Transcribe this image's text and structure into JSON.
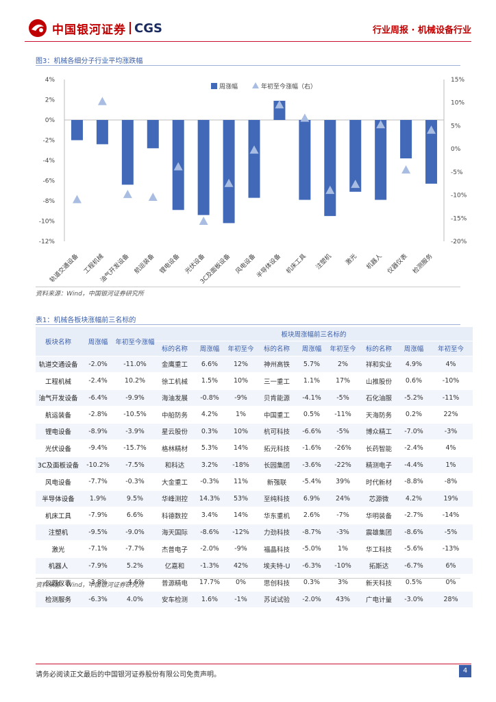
{
  "header": {
    "brand_cn": "中国银河证券",
    "brand_en": "CGS",
    "report_type": "行业周报 · 机械设备行业"
  },
  "figure": {
    "title": "图3：机械各细分子行业平均涨跌幅",
    "source": "资料来源：Wind，中国银河证券研究所"
  },
  "chart_data": {
    "type": "bar",
    "categories": [
      "轨道交通设备",
      "工程机械",
      "油气开发设备",
      "航运装备",
      "锂电设备",
      "光伏设备",
      "3C及面板设备",
      "风电设备",
      "半导体设备",
      "机床工具",
      "注塑机",
      "激光",
      "机器人",
      "仪器仪表",
      "检测服务"
    ],
    "series": [
      {
        "name": "周涨幅",
        "axis": "left",
        "kind": "bar",
        "values": [
          -2.0,
          -2.4,
          -6.4,
          -2.8,
          -8.9,
          -9.4,
          -10.2,
          -7.7,
          1.9,
          -7.9,
          -9.5,
          -7.1,
          -7.9,
          -3.8,
          -6.3
        ]
      },
      {
        "name": "年初至今涨幅（右）",
        "axis": "right",
        "kind": "marker",
        "values": [
          -11.0,
          10.2,
          -9.9,
          -10.5,
          -3.9,
          -15.7,
          -7.5,
          -0.3,
          9.5,
          6.6,
          -9.0,
          -7.7,
          5.2,
          -4.6,
          4.0
        ]
      }
    ],
    "y_left": {
      "min": -12,
      "max": 4,
      "ticks": [
        "4%",
        "2%",
        "0%",
        "-2%",
        "-4%",
        "-6%",
        "-8%",
        "-10%",
        "-12%"
      ]
    },
    "y_right": {
      "min": -20,
      "max": 15,
      "ticks": [
        "15%",
        "10%",
        "5%",
        "0%",
        "-5%",
        "-10%",
        "-15%",
        "-20%"
      ]
    },
    "legend_position": "top-right",
    "colors": {
      "bar": "#4169b8",
      "marker": "#a9bde3"
    }
  },
  "table": {
    "title": "表1：机械各板块涨幅前三名标的",
    "source": "资料来源：Wind，中国银河证券研究所",
    "group_header": "板块周涨幅前三名标的",
    "col_headers": [
      "板块名称",
      "周涨幅",
      "年初至今涨幅",
      "标的名称",
      "周涨幅",
      "年初至今",
      "标的名称",
      "周涨幅",
      "年初至今",
      "标的名称",
      "周涨幅",
      "年初至今"
    ],
    "rows": [
      [
        "轨道交通设备",
        "-2.0%",
        "-11.0%",
        "金鹰重工",
        "6.6%",
        "12%",
        "神州高铁",
        "5.7%",
        "2%",
        "祥和实业",
        "4.9%",
        "4%"
      ],
      [
        "工程机械",
        "-2.4%",
        "10.2%",
        "徐工机械",
        "1.5%",
        "10%",
        "三一重工",
        "1.1%",
        "17%",
        "山推股份",
        "0.6%",
        "-10%"
      ],
      [
        "油气开发设备",
        "-6.4%",
        "-9.9%",
        "海油发展",
        "-0.8%",
        "-9%",
        "贝肯能源",
        "-4.1%",
        "-5%",
        "石化油服",
        "-5.2%",
        "-11%"
      ],
      [
        "航运装备",
        "-2.8%",
        "-10.5%",
        "中船防务",
        "4.2%",
        "1%",
        "中国重工",
        "0.5%",
        "-11%",
        "天海防务",
        "0.2%",
        "22%"
      ],
      [
        "锂电设备",
        "-8.9%",
        "-3.9%",
        "星云股份",
        "0.3%",
        "10%",
        "杭可科技",
        "-6.6%",
        "-5%",
        "博众精工",
        "-7.0%",
        "-3%"
      ],
      [
        "光伏设备",
        "-9.4%",
        "-15.7%",
        "格林精材",
        "5.3%",
        "14%",
        "拓元科技",
        "-1.6%",
        "-26%",
        "长药智能",
        "-2.4%",
        "4%"
      ],
      [
        "3C及面板设备",
        "-10.2%",
        "-7.5%",
        "和科达",
        "3.2%",
        "-18%",
        "长园集团",
        "-3.6%",
        "-22%",
        "精测电子",
        "-4.4%",
        "1%"
      ],
      [
        "风电设备",
        "-7.7%",
        "-0.3%",
        "大金重工",
        "-0.3%",
        "11%",
        "新强联",
        "-5.4%",
        "39%",
        "时代新材",
        "-8.8%",
        "-8%"
      ],
      [
        "半导体设备",
        "1.9%",
        "9.5%",
        "华峰测控",
        "14.3%",
        "53%",
        "至纯科技",
        "6.9%",
        "24%",
        "芯源微",
        "4.2%",
        "19%"
      ],
      [
        "机床工具",
        "-7.9%",
        "6.6%",
        "科德数控",
        "3.4%",
        "14%",
        "华东重机",
        "2.6%",
        "-7%",
        "华明装备",
        "-2.7%",
        "-14%"
      ],
      [
        "注塑机",
        "-9.5%",
        "-9.0%",
        "海天国际",
        "-8.6%",
        "-12%",
        "力劲科技",
        "-8.7%",
        "-3%",
        "震雄集团",
        "-8.6%",
        "-5%"
      ],
      [
        "激光",
        "-7.1%",
        "-7.7%",
        "杰普电子",
        "-2.0%",
        "-9%",
        "福晶科技",
        "-5.0%",
        "1%",
        "华工科技",
        "-5.6%",
        "-13%"
      ],
      [
        "机器人",
        "-7.9%",
        "5.2%",
        "亿嘉和",
        "-1.3%",
        "42%",
        "埃夫特-U",
        "-6.3%",
        "-10%",
        "拓斯达",
        "-6.7%",
        "6%"
      ],
      [
        "仪器仪表",
        "-3.8%",
        "-4.6%",
        "普源精电",
        "17.7%",
        "0%",
        "思创科技",
        "0.3%",
        "3%",
        "新天科技",
        "0.5%",
        "0%"
      ],
      [
        "检测服务",
        "-6.3%",
        "4.0%",
        "安车检测",
        "1.6%",
        "-1%",
        "苏试试验",
        "-2.0%",
        "43%",
        "广电计量",
        "-3.0%",
        "28%"
      ]
    ]
  },
  "footer": {
    "disclaimer": "请务必阅读正文最后的中国银河证券股份有限公司免责声明。",
    "page": "4"
  }
}
